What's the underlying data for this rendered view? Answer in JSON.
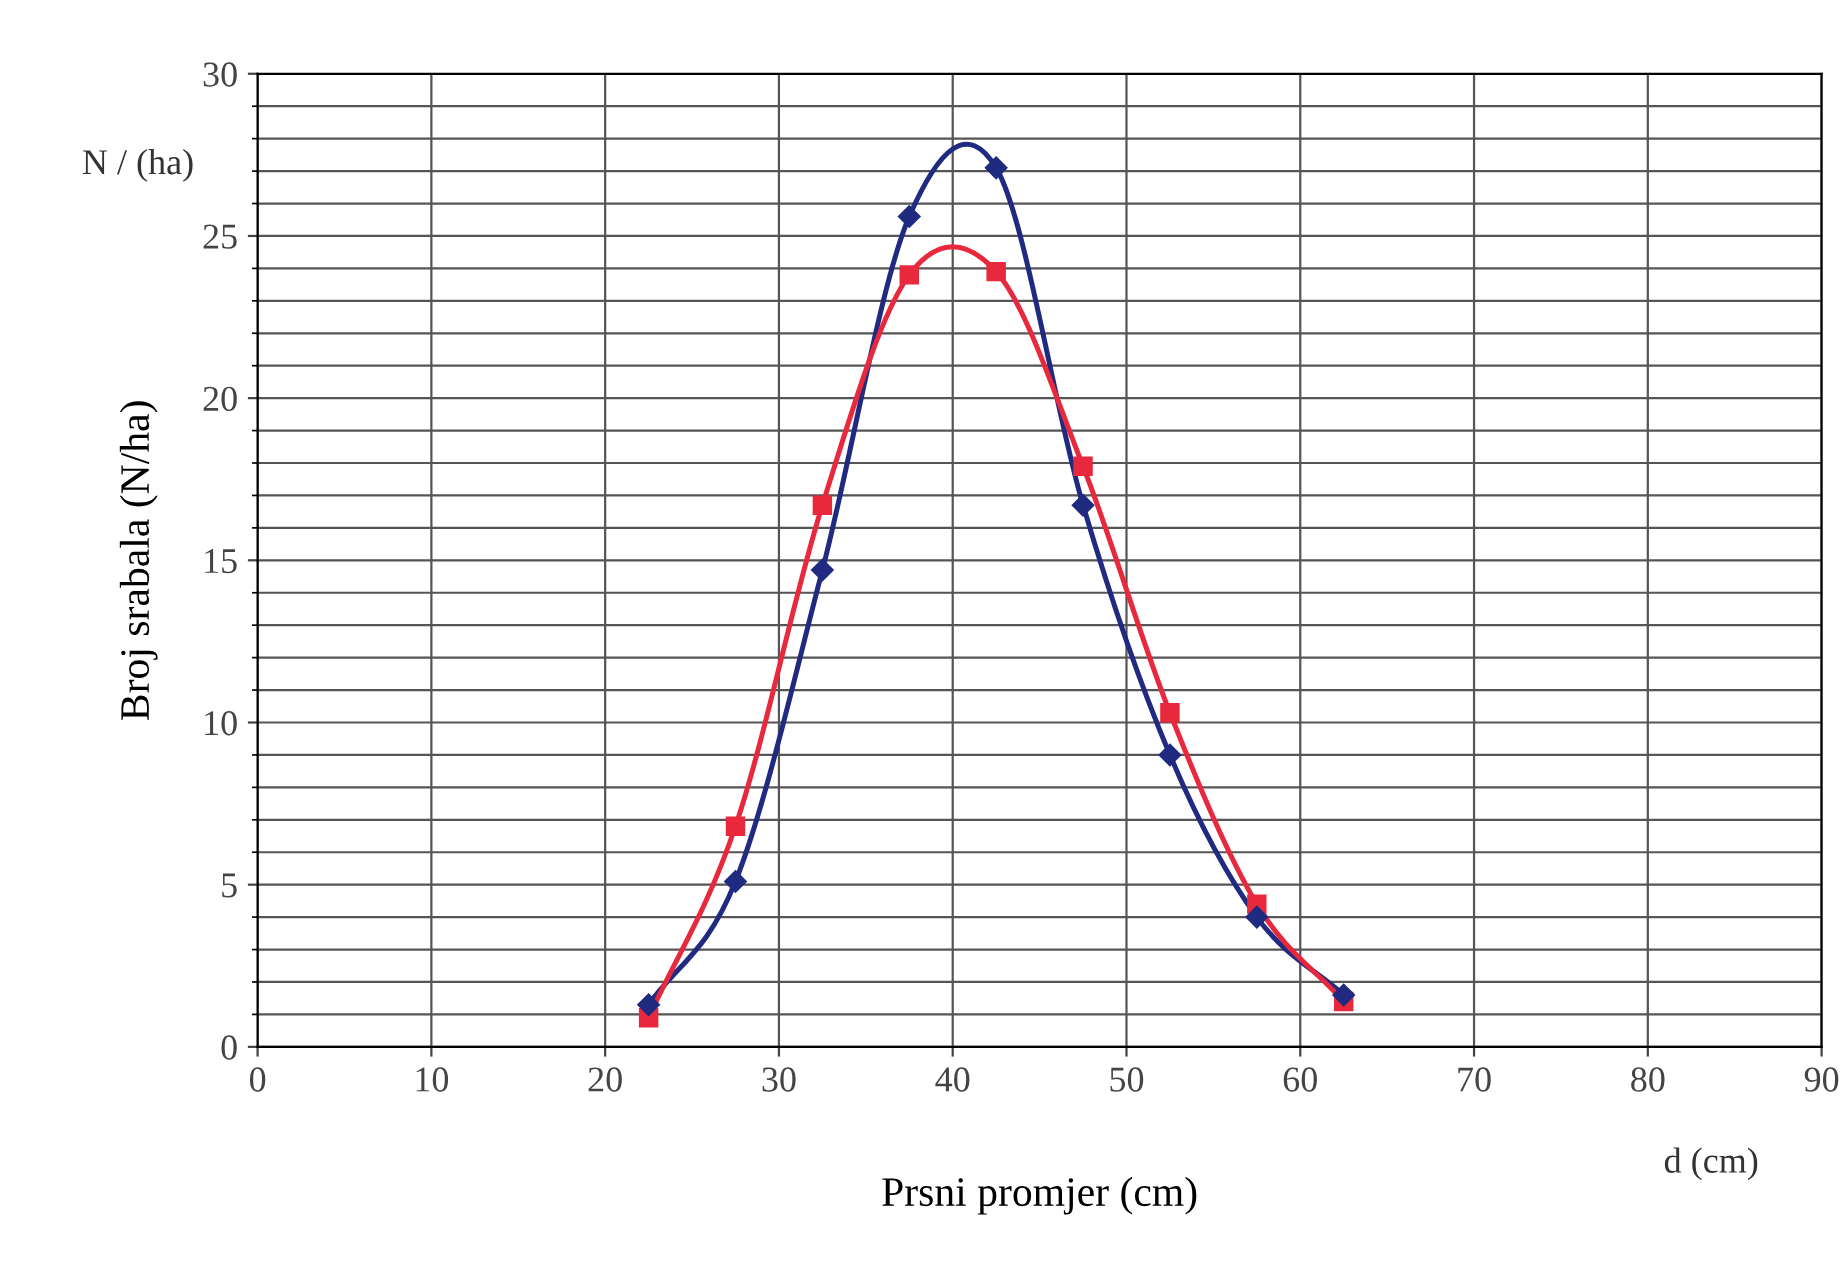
{
  "chart_data": {
    "type": "line",
    "xlabel": "Prsni promjer (cm)",
    "ylabel": "Broj srabala (N/ha)",
    "annotations": [
      "N / (ha)",
      "d (cm)"
    ],
    "x": [
      22.5,
      27.5,
      32.5,
      37.5,
      42.5,
      47.5,
      52.5,
      57.5,
      62.5
    ],
    "series": [
      {
        "color": "#1f2a80",
        "marker": "diamond",
        "values": [
          1.3,
          5.1,
          14.7,
          25.6,
          27.1,
          16.7,
          9.0,
          4.0,
          1.6
        ]
      },
      {
        "color": "#e8283c",
        "marker": "square",
        "values": [
          0.9,
          6.8,
          16.7,
          23.8,
          23.9,
          17.9,
          10.3,
          4.4,
          1.4
        ]
      }
    ],
    "xlim": [
      0,
      90
    ],
    "xticks": [
      0,
      10,
      20,
      30,
      40,
      50,
      60,
      70,
      80,
      90
    ],
    "ylim": [
      0,
      30
    ],
    "yticks": [
      0,
      5,
      10,
      15,
      20,
      25,
      30
    ],
    "grid": true,
    "legend": false,
    "line_style": "solid"
  }
}
